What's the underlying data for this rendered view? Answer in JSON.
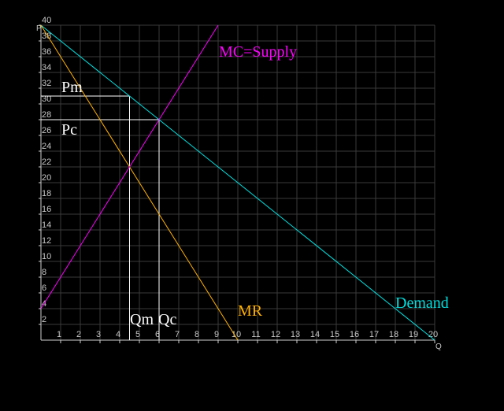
{
  "chart_data": {
    "type": "line",
    "xlabel": "Q",
    "ylabel": "P",
    "xlim": [
      0,
      20
    ],
    "ylim": [
      0,
      40
    ],
    "grid": true,
    "x_ticks": [
      "1",
      "2",
      "3",
      "4",
      "5",
      "6",
      "7",
      "8",
      "9",
      "10",
      "11",
      "12",
      "13",
      "14",
      "15",
      "16",
      "17",
      "18",
      "19",
      "20"
    ],
    "y_ticks": [
      "2",
      "4",
      "6",
      "8",
      "10",
      "12",
      "14",
      "16",
      "18",
      "20",
      "22",
      "24",
      "26",
      "28",
      "30",
      "32",
      "34",
      "36",
      "38",
      "40"
    ],
    "series": [
      {
        "name": "Demand",
        "color": "#00e0e0",
        "x": [
          0,
          20
        ],
        "y": [
          40,
          0
        ]
      },
      {
        "name": "MR",
        "color": "#ffb000",
        "x": [
          0,
          10
        ],
        "y": [
          40,
          0
        ]
      },
      {
        "name": "MC=Supply",
        "color": "#ff00ff",
        "x": [
          0,
          9
        ],
        "y": [
          4,
          40
        ]
      }
    ],
    "reference_lines": [
      {
        "label": "Pm",
        "color": "#ffffff",
        "price": 31,
        "quantity": 4.5
      },
      {
        "label": "Pc",
        "color": "#ffffff",
        "price": 28,
        "quantity": 6
      }
    ],
    "annotations": {
      "qm": "Qm",
      "qc": "Qc"
    }
  }
}
